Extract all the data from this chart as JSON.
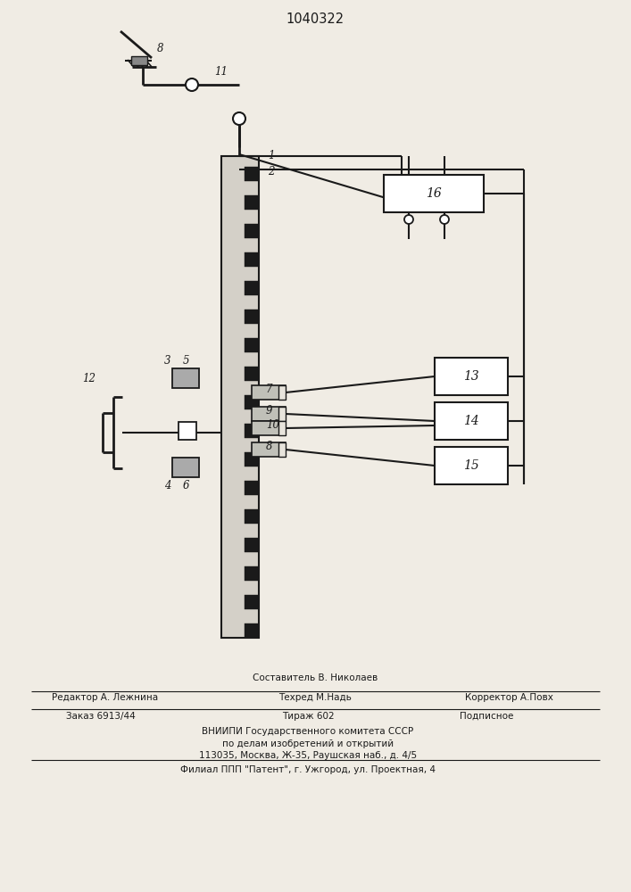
{
  "title": "1040322",
  "bg_color": "#f0ece4",
  "line_color": "#1a1a1a",
  "figsize": [
    7.07,
    10.0
  ],
  "dpi": 100,
  "footer": {
    "l1": "Составитель В. Николаев",
    "l2a": "Редактор А. Лежнина",
    "l2b": "Техред М.Надь",
    "l2c": "Корректор А.Повх",
    "l3a": "Заказ 6913/44",
    "l3b": "Тираж 602",
    "l3c": "Подписное",
    "l4": "ВНИИПИ Государственного комитета СССР",
    "l5": "по делам изобретений и открытий",
    "l6": "113035, Москва, Ж-35, Раушская наб., д. 4/5",
    "l7": "Филиал ППП \"Патент\", г. Ужгород, ул. Проектная, 4"
  }
}
